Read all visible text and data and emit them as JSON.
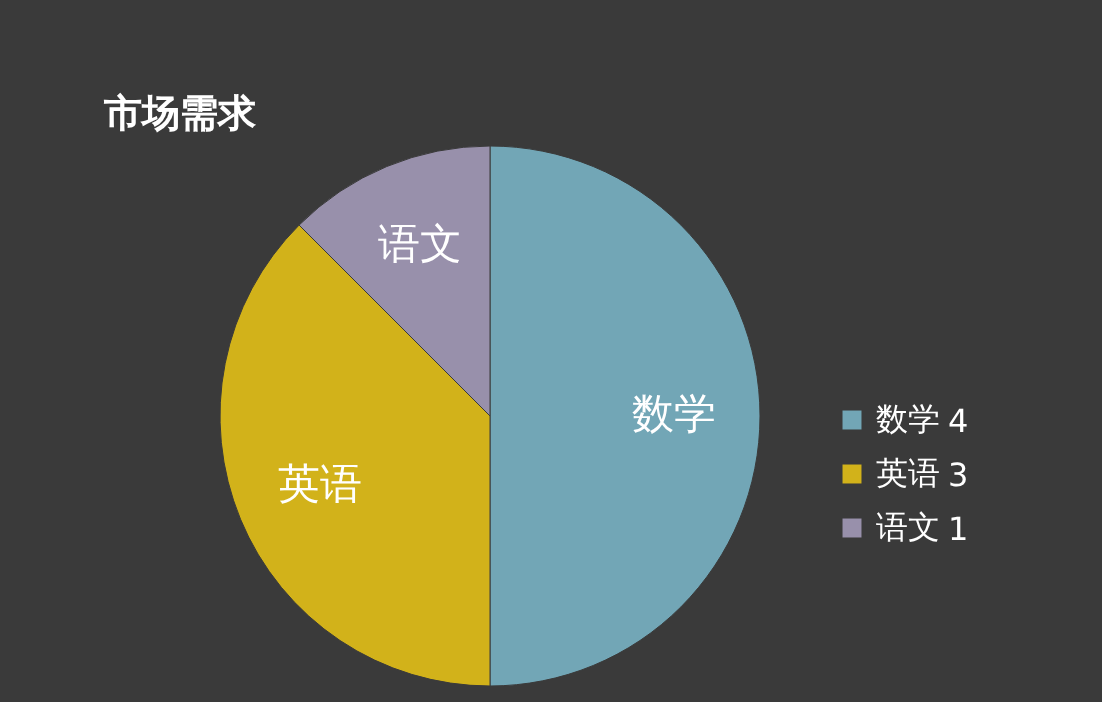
{
  "chart_data": {
    "type": "pie",
    "title": "市场需求",
    "categories": [
      "数学",
      "英语",
      "语文"
    ],
    "values": [
      4,
      3,
      1
    ],
    "colors": [
      "#72a6b6",
      "#d2b21a",
      "#9890ab"
    ],
    "legend": "right",
    "data_labels": true
  }
}
